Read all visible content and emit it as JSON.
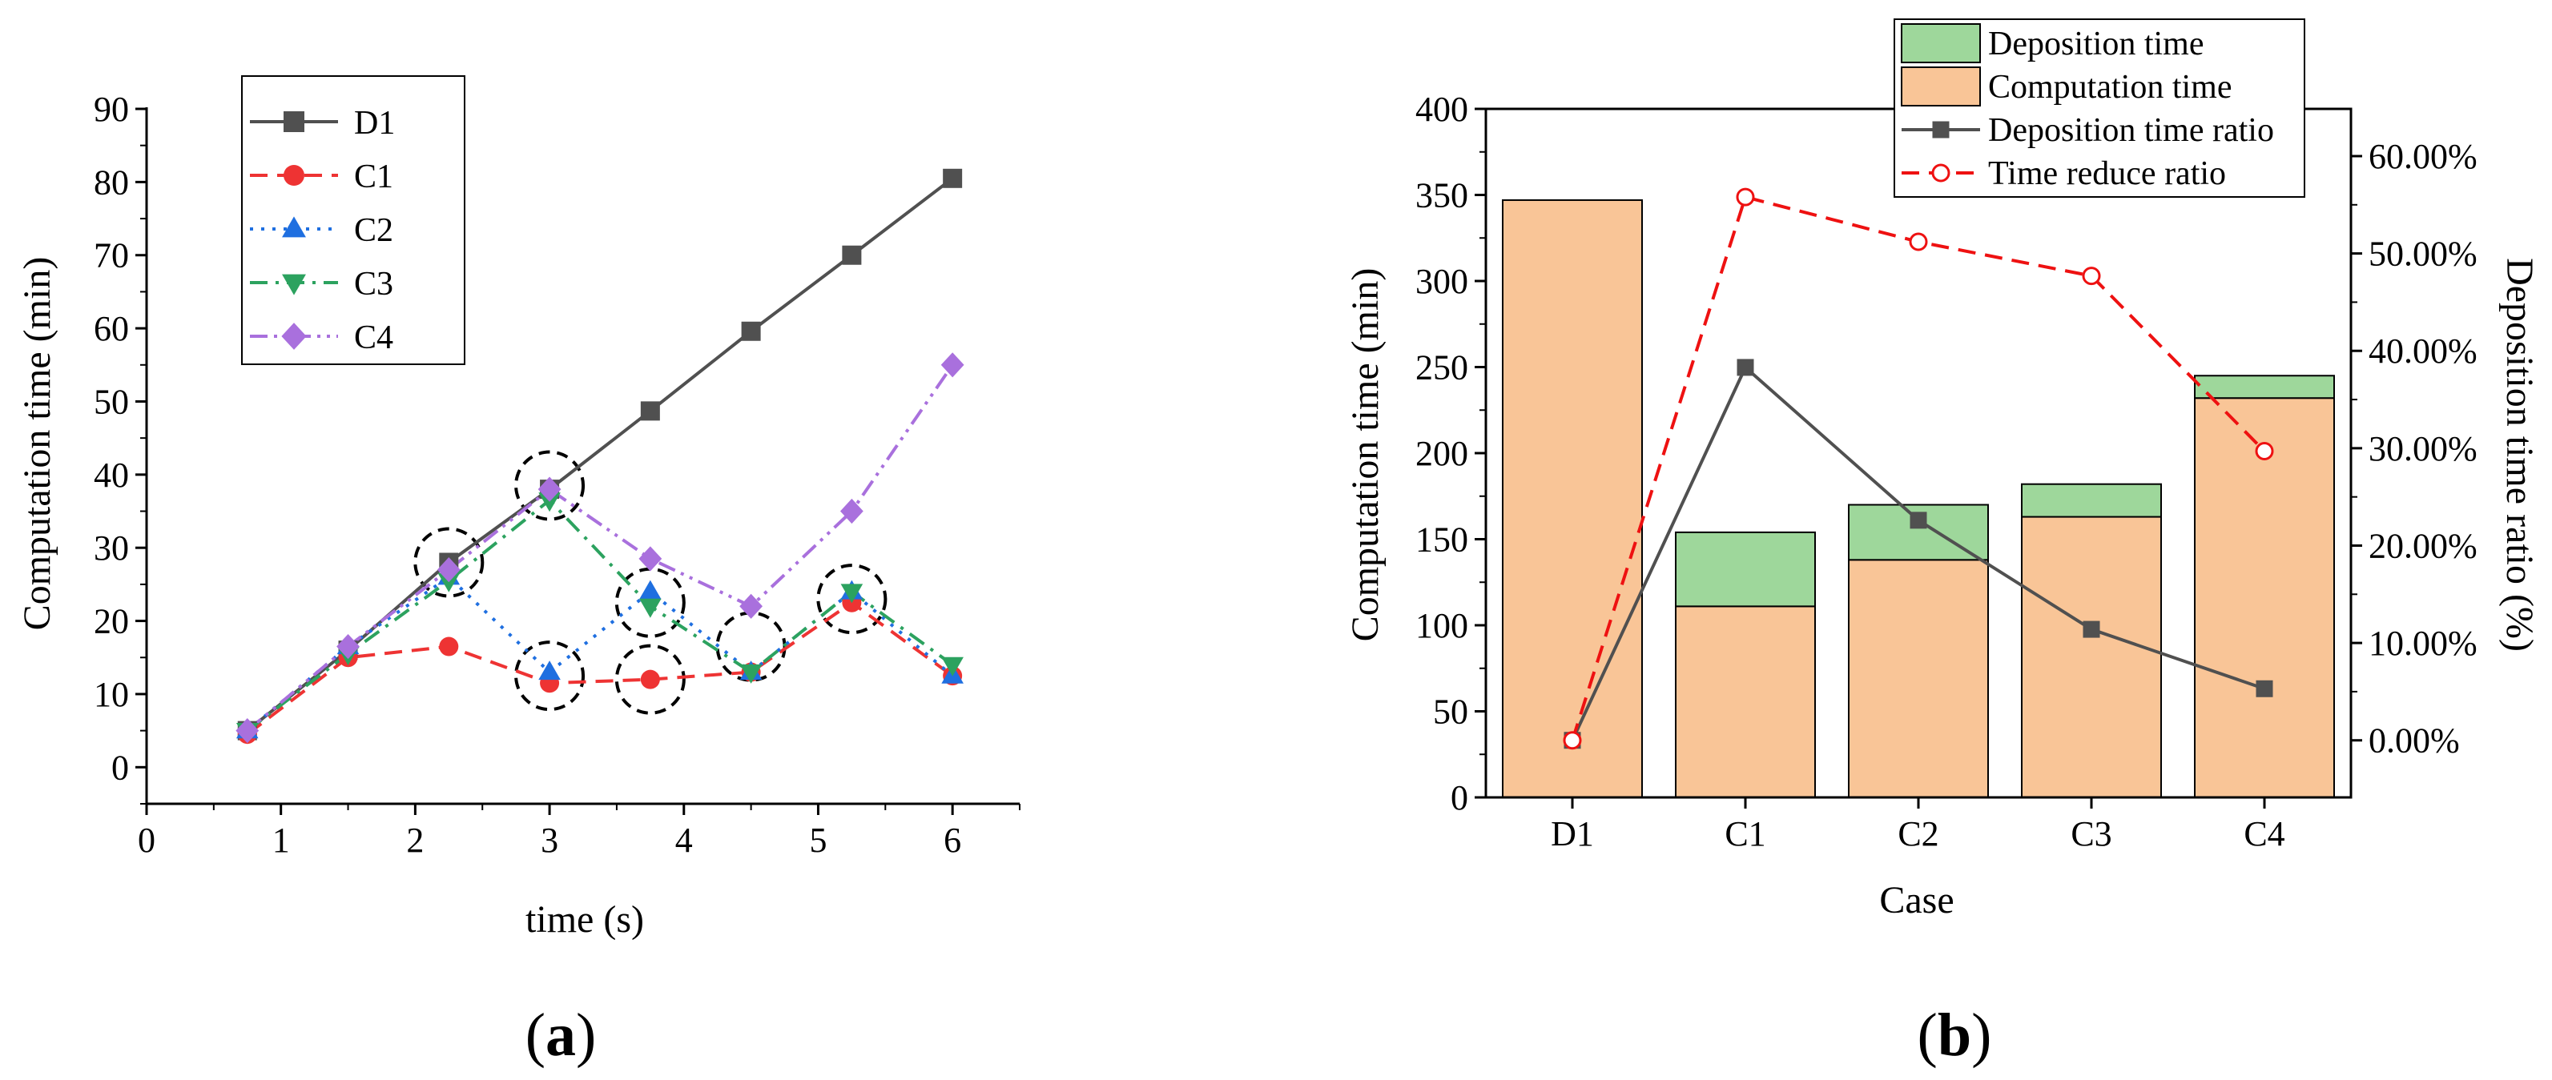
{
  "chart_data": [
    {
      "type": "line",
      "panel_label": "a",
      "title": "",
      "xlabel": "time (s)",
      "ylabel": "Computation time (min)",
      "xlim": [
        0,
        6.5
      ],
      "ylim": [
        -5,
        90
      ],
      "xticks": [
        0,
        1,
        2,
        3,
        4,
        5,
        6
      ],
      "yticks": [
        0,
        10,
        20,
        30,
        40,
        50,
        60,
        70,
        80,
        90
      ],
      "grid": false,
      "legend_position": "top-left",
      "x": [
        0.75,
        1.5,
        2.25,
        3.0,
        3.75,
        4.5,
        5.25,
        6.0
      ],
      "series": [
        {
          "name": "D1",
          "color": "#505050",
          "marker": "square",
          "dash": "solid",
          "values": [
            5,
            16,
            28,
            38,
            48.7,
            59.6,
            70,
            80.5
          ]
        },
        {
          "name": "C1",
          "color": "#ee3333",
          "marker": "circle",
          "dash": "dash",
          "values": [
            4.5,
            15,
            16.5,
            11.5,
            12,
            13,
            22.5,
            12.5
          ]
        },
        {
          "name": "C2",
          "color": "#1f6fe0",
          "marker": "triangle-up",
          "dash": "dot",
          "values": [
            5,
            16.5,
            26,
            13,
            24,
            13,
            24,
            12.5
          ]
        },
        {
          "name": "C3",
          "color": "#2ca25f",
          "marker": "triangle-down",
          "dash": "dashdot",
          "values": [
            5,
            15.5,
            25.5,
            36.5,
            22,
            13,
            24,
            14
          ]
        },
        {
          "name": "C4",
          "color": "#a970dd",
          "marker": "diamond",
          "dash": "dashdotdot",
          "values": [
            5,
            16.5,
            27,
            38,
            28.5,
            22,
            35,
            55
          ]
        }
      ],
      "annotations": [
        {
          "type": "dashed-circle",
          "x": 2.25,
          "y": 28
        },
        {
          "type": "dashed-circle",
          "x": 3.0,
          "y": 38.5
        },
        {
          "type": "dashed-circle",
          "x": 3.0,
          "y": 12.5
        },
        {
          "type": "dashed-circle",
          "x": 3.75,
          "y": 22.5
        },
        {
          "type": "dashed-circle",
          "x": 3.75,
          "y": 12
        },
        {
          "type": "dashed-circle",
          "x": 4.5,
          "y": 16.5
        },
        {
          "type": "dashed-circle",
          "x": 5.25,
          "y": 23
        }
      ]
    },
    {
      "type": "bar",
      "panel_label": "b",
      "title": "",
      "xlabel": "Case",
      "ylabel": "Computation time (min)",
      "y2label": "Deposition time  ratio (%)",
      "categories": [
        "D1",
        "C1",
        "C2",
        "C3",
        "C4"
      ],
      "ylim": [
        0,
        400
      ],
      "yticks": [
        0,
        50,
        100,
        150,
        200,
        250,
        300,
        350,
        400
      ],
      "y2lim": [
        -0.0586,
        0.6485
      ],
      "y2ticks": [
        0,
        0.1,
        0.2,
        0.3,
        0.4,
        0.5,
        0.6
      ],
      "y2ticklabels": [
        "0.00%",
        "10.00%",
        "20.00%",
        "30.00%",
        "40.00%",
        "50.00%",
        "60.00%"
      ],
      "grid": false,
      "legend_position": "top-right",
      "stacked_series": [
        {
          "name": "Computation time",
          "color": "#f9c597",
          "values": [
            347,
            111,
            138,
            163,
            232
          ]
        },
        {
          "name": "Deposition time",
          "color": "#9ed79b",
          "values": [
            0,
            43,
            32,
            19,
            13
          ]
        }
      ],
      "line_series": [
        {
          "name": "Deposition time  ratio",
          "axis": "right",
          "color": "#505050",
          "marker": "filled-square",
          "dash": "solid",
          "values": [
            0,
            0.383,
            0.226,
            0.114,
            0.053
          ]
        },
        {
          "name": "Time reduce ratio",
          "axis": "right",
          "color": "#ee1111",
          "marker": "open-circle",
          "dash": "dash",
          "values": [
            0,
            0.558,
            0.512,
            0.477,
            0.297
          ]
        }
      ]
    }
  ]
}
